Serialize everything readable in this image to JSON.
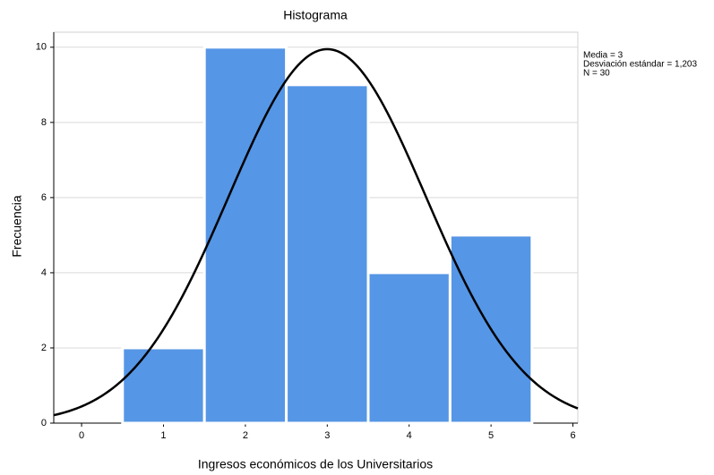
{
  "chart_data": {
    "type": "histogram",
    "title": "Histograma",
    "x_label": "Ingresos económicos de los Universitarios",
    "y_label": "Frecuencia",
    "bins": [
      0.5,
      1.5,
      2.5,
      3.5,
      4.5,
      5.5
    ],
    "counts": [
      2,
      10,
      9,
      4,
      5
    ],
    "color": "#5596e6",
    "xlim": [
      -0.34,
      6.06
    ],
    "xticks": [
      0,
      1,
      2,
      3,
      4,
      5,
      6
    ],
    "ylim": [
      0,
      10.4
    ],
    "yticks": [
      0,
      2,
      4,
      6,
      8,
      10
    ],
    "grid": true,
    "normal_curve": {
      "mean": 3,
      "sd": 1.203,
      "n": 30,
      "color": "#000000",
      "labels": [
        "Media = 3",
        "Desviación estándar = 1,203",
        "N = 30"
      ]
    }
  }
}
